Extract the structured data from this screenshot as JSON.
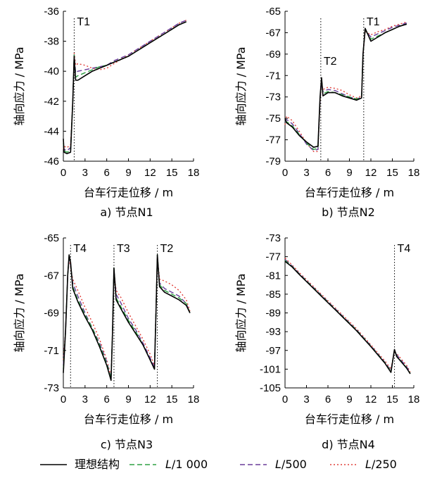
{
  "legend": [
    {
      "name": "理想结构",
      "style": "solid",
      "color": "#000000"
    },
    {
      "name": "L/1 000",
      "style": "dash",
      "color": "#2ea043"
    },
    {
      "name": "L/500",
      "style": "dash",
      "color": "#6a3d9a"
    },
    {
      "name": "L/250",
      "style": "dot",
      "color": "#e0403a"
    }
  ],
  "legend_text": {
    "ideal": "理想结构",
    "l1000_prefix": "L",
    "l1000_suffix": "/1 000",
    "l500_prefix": "L",
    "l500_suffix": "/500",
    "l250_prefix": "L",
    "l250_suffix": "/250"
  },
  "chart_data": [
    {
      "type": "line",
      "caption": "a)  节点N1",
      "xlabel": "台车行走位移 / m",
      "ylabel": "轴向应力 / MPa",
      "xlim": [
        0,
        18
      ],
      "ylim": [
        -46,
        -36
      ],
      "xticks": [
        0,
        3,
        6,
        9,
        12,
        15,
        18
      ],
      "yticks": [
        -46,
        -44,
        -42,
        -40,
        -38,
        -36
      ],
      "annotations": [
        {
          "text": "T1",
          "x": 1.5
        }
      ],
      "series": [
        {
          "x": [
            0,
            0.1,
            0.5,
            1.0,
            1.3,
            1.5,
            1.7,
            2.0,
            3.0,
            4.0,
            5.0,
            6.0,
            7.0,
            8.0,
            9.0,
            10.0,
            11.0,
            12.0,
            13.0,
            14.0,
            15.0,
            16.0,
            17.0
          ],
          "y": [
            -44.5,
            -45.4,
            -45.5,
            -45.4,
            -42.0,
            -39.0,
            -40.6,
            -40.6,
            -40.3,
            -40.0,
            -39.8,
            -39.6,
            -39.4,
            -39.2,
            -39.0,
            -38.7,
            -38.4,
            -38.1,
            -37.8,
            -37.5,
            -37.2,
            -36.9,
            -36.7
          ]
        },
        {
          "x": [
            0,
            0.1,
            0.5,
            1.0,
            1.3,
            1.5,
            1.7,
            2.0,
            3.0,
            4.0,
            5.0,
            6.0,
            7.0,
            8.0,
            9.0,
            10.0,
            11.0,
            12.0,
            13.0,
            14.0,
            15.0,
            16.0,
            17.0
          ],
          "y": [
            -44.8,
            -45.3,
            -45.4,
            -45.3,
            -42.0,
            -38.9,
            -40.4,
            -40.3,
            -40.1,
            -39.9,
            -39.7,
            -39.6,
            -39.4,
            -39.2,
            -39.0,
            -38.7,
            -38.4,
            -38.1,
            -37.8,
            -37.5,
            -37.2,
            -36.9,
            -36.7
          ]
        },
        {
          "x": [
            0,
            0.1,
            0.5,
            1.0,
            1.3,
            1.5,
            1.7,
            2.0,
            3.0,
            4.0,
            5.0,
            6.0,
            7.0,
            8.0,
            9.0,
            10.0,
            11.0,
            12.0,
            13.0,
            14.0,
            15.0,
            16.0,
            17.0
          ],
          "y": [
            -45.0,
            -45.2,
            -45.3,
            -45.1,
            -42.0,
            -38.9,
            -40.1,
            -40.0,
            -39.9,
            -39.8,
            -39.7,
            -39.6,
            -39.3,
            -39.1,
            -38.9,
            -38.6,
            -38.3,
            -38.0,
            -37.7,
            -37.4,
            -37.1,
            -36.8,
            -36.6
          ]
        },
        {
          "x": [
            0,
            0.1,
            0.5,
            1.0,
            1.3,
            1.5,
            1.7,
            2.0,
            3.0,
            4.0,
            5.0,
            6.0,
            7.0,
            8.0,
            9.0,
            10.0,
            11.0,
            12.0,
            13.0,
            14.0,
            15.0,
            16.0,
            17.0
          ],
          "y": [
            -45.2,
            -45.0,
            -45.1,
            -44.9,
            -42.0,
            -38.8,
            -39.6,
            -39.5,
            -39.6,
            -39.8,
            -39.9,
            -39.8,
            -39.5,
            -39.2,
            -38.9,
            -38.6,
            -38.3,
            -38.0,
            -37.7,
            -37.4,
            -37.1,
            -36.8,
            -36.6
          ]
        }
      ]
    },
    {
      "type": "line",
      "caption": "b)  节点N2",
      "xlabel": "台车行走位移 / m",
      "ylabel": "轴向应力 / MPa",
      "xlim": [
        0,
        18
      ],
      "ylim": [
        -79,
        -65
      ],
      "xticks": [
        0,
        3,
        6,
        9,
        12,
        15,
        18
      ],
      "yticks": [
        -79,
        -77,
        -75,
        -73,
        -71,
        -69,
        -67,
        -65
      ],
      "annotations": [
        {
          "text": "T2",
          "x": 5
        },
        {
          "text": "T1",
          "x": 11
        }
      ],
      "series": [
        {
          "x": [
            0,
            0.2,
            1,
            2,
            3,
            4,
            4.6,
            4.9,
            5.1,
            5.3,
            6,
            7,
            8,
            9,
            10,
            10.7,
            10.9,
            11.2,
            12,
            13,
            14,
            15,
            16,
            17
          ],
          "y": [
            -75.0,
            -75.4,
            -75.8,
            -76.6,
            -77.2,
            -77.7,
            -77.6,
            -73.0,
            -71.2,
            -72.9,
            -72.6,
            -72.6,
            -72.9,
            -73.1,
            -73.3,
            -73.1,
            -69.0,
            -66.6,
            -67.8,
            -67.4,
            -67.0,
            -66.7,
            -66.4,
            -66.2
          ]
        },
        {
          "x": [
            0,
            0.2,
            1,
            2,
            3,
            4,
            4.6,
            4.9,
            5.1,
            5.3,
            6,
            7,
            8,
            9,
            10,
            10.7,
            10.9,
            11.2,
            12,
            13,
            14,
            15,
            16,
            17
          ],
          "y": [
            -75.2,
            -75.3,
            -75.7,
            -76.5,
            -77.3,
            -77.9,
            -77.8,
            -73.2,
            -71.3,
            -72.7,
            -72.5,
            -72.6,
            -72.8,
            -73.0,
            -73.2,
            -73.0,
            -69.0,
            -66.7,
            -67.6,
            -67.3,
            -67.0,
            -66.7,
            -66.4,
            -66.2
          ]
        },
        {
          "x": [
            0,
            0.2,
            1,
            2,
            3,
            4,
            4.6,
            4.9,
            5.1,
            5.3,
            6,
            7,
            8,
            9,
            10,
            10.7,
            10.9,
            11.2,
            12,
            13,
            14,
            15,
            16,
            17
          ],
          "y": [
            -75.3,
            -75.1,
            -75.5,
            -76.4,
            -77.4,
            -78.0,
            -77.9,
            -73.3,
            -71.5,
            -72.5,
            -72.3,
            -72.4,
            -72.7,
            -73.0,
            -73.2,
            -73.0,
            -69.0,
            -66.8,
            -67.4,
            -67.1,
            -66.8,
            -66.5,
            -66.3,
            -66.1
          ]
        },
        {
          "x": [
            0,
            0.2,
            1,
            2,
            3,
            4,
            4.6,
            4.9,
            5.1,
            5.3,
            6,
            7,
            8,
            9,
            10,
            10.7,
            10.9,
            11.2,
            12,
            13,
            14,
            15,
            16,
            17
          ],
          "y": [
            -75.6,
            -74.8,
            -75.2,
            -76.2,
            -77.3,
            -78.1,
            -78.1,
            -73.5,
            -71.7,
            -72.3,
            -72.1,
            -72.2,
            -72.4,
            -72.8,
            -73.1,
            -72.9,
            -69.0,
            -66.9,
            -67.2,
            -66.9,
            -66.7,
            -66.4,
            -66.2,
            -66.0
          ]
        }
      ]
    },
    {
      "type": "line",
      "caption": "c)  节点N3",
      "xlabel": "台车行走位移 / m",
      "ylabel": "轴向应力 / MPa",
      "xlim": [
        0,
        18
      ],
      "ylim": [
        -73,
        -65
      ],
      "xticks": [
        0,
        3,
        6,
        9,
        12,
        15,
        18
      ],
      "yticks": [
        -73,
        -71,
        -69,
        -67,
        -65
      ],
      "annotations": [
        {
          "text": "T4",
          "x": 1
        },
        {
          "text": "T3",
          "x": 7
        },
        {
          "text": "T2",
          "x": 13
        }
      ],
      "series": [
        {
          "x": [
            0,
            0.3,
            0.6,
            0.8,
            1.0,
            1.3,
            2,
            3,
            4,
            5,
            6,
            6.6,
            6.8,
            7.0,
            7.3,
            8,
            9,
            10,
            11,
            12,
            12.6,
            12.8,
            13.0,
            13.3,
            14,
            15,
            16,
            17,
            17.5
          ],
          "y": [
            -72.2,
            -70.0,
            -67.0,
            -65.9,
            -66.3,
            -67.7,
            -68.4,
            -69.2,
            -69.9,
            -70.8,
            -71.8,
            -72.6,
            -70.0,
            -66.6,
            -68.3,
            -68.8,
            -69.5,
            -70.1,
            -70.7,
            -71.5,
            -72.0,
            -69.0,
            -65.9,
            -67.6,
            -67.9,
            -68.1,
            -68.3,
            -68.6,
            -69.0
          ]
        },
        {
          "x": [
            0,
            0.3,
            0.6,
            0.8,
            1.0,
            1.3,
            2,
            3,
            4,
            5,
            6,
            6.6,
            6.8,
            7.0,
            7.3,
            8,
            9,
            10,
            11,
            12,
            12.6,
            12.8,
            13.0,
            13.3,
            14,
            15,
            16,
            17,
            17.5
          ],
          "y": [
            -72.0,
            -70.0,
            -67.0,
            -65.9,
            -66.4,
            -67.6,
            -68.3,
            -69.1,
            -69.8,
            -70.7,
            -71.7,
            -72.5,
            -70.0,
            -66.6,
            -68.2,
            -68.7,
            -69.4,
            -70.0,
            -70.7,
            -71.5,
            -72.0,
            -69.0,
            -65.9,
            -67.5,
            -67.8,
            -68.0,
            -68.2,
            -68.5,
            -69.0
          ]
        },
        {
          "x": [
            0,
            0.3,
            0.6,
            0.8,
            1.0,
            1.3,
            2,
            3,
            4,
            5,
            6,
            6.6,
            6.8,
            7.0,
            7.3,
            8,
            9,
            10,
            11,
            12,
            12.6,
            12.8,
            13.0,
            13.3,
            14,
            15,
            16,
            17,
            17.5
          ],
          "y": [
            -71.8,
            -70.0,
            -67.0,
            -66.0,
            -66.5,
            -67.4,
            -68.1,
            -69.0,
            -69.8,
            -70.6,
            -71.6,
            -72.5,
            -70.0,
            -66.7,
            -68.0,
            -68.5,
            -69.3,
            -69.9,
            -70.6,
            -71.4,
            -71.9,
            -69.0,
            -66.0,
            -67.4,
            -67.7,
            -67.9,
            -68.1,
            -68.5,
            -69.0
          ]
        },
        {
          "x": [
            0,
            0.3,
            0.6,
            0.8,
            1.0,
            1.3,
            2,
            3,
            4,
            5,
            6,
            6.6,
            6.8,
            7.0,
            7.3,
            8,
            9,
            10,
            11,
            12,
            12.6,
            12.8,
            13.0,
            13.3,
            14,
            15,
            16,
            17,
            17.5
          ],
          "y": [
            -71.5,
            -70.0,
            -67.0,
            -66.0,
            -66.6,
            -67.2,
            -67.8,
            -68.7,
            -69.5,
            -70.4,
            -71.5,
            -72.4,
            -70.0,
            -66.8,
            -67.8,
            -68.2,
            -69.0,
            -69.7,
            -70.4,
            -71.2,
            -71.8,
            -69.0,
            -66.0,
            -67.2,
            -67.3,
            -67.5,
            -67.8,
            -68.3,
            -68.9
          ]
        }
      ]
    },
    {
      "type": "line",
      "caption": "d)  节点N4",
      "xlabel": "台车行走位移 / m",
      "ylabel": "轴向应力 / MPa",
      "xlim": [
        0,
        18
      ],
      "ylim": [
        -105,
        -73
      ],
      "xticks": [
        0,
        3,
        6,
        9,
        12,
        15,
        18
      ],
      "yticks": [
        -105,
        -101,
        -97,
        -93,
        -89,
        -85,
        -81,
        -77,
        -73
      ],
      "annotations": [
        {
          "text": "T4",
          "x": 15.3
        }
      ],
      "series": [
        {
          "x": [
            0,
            1,
            2,
            3,
            4,
            5,
            6,
            7,
            8,
            9,
            10,
            11,
            12,
            13,
            14,
            14.8,
            15.3,
            15.6,
            16,
            17,
            17.5
          ],
          "y": [
            -78.0,
            -79.2,
            -80.8,
            -82.3,
            -83.8,
            -85.3,
            -86.8,
            -88.3,
            -89.8,
            -91.3,
            -92.8,
            -94.5,
            -96.2,
            -98.0,
            -99.8,
            -101.7,
            -96.8,
            -98.3,
            -99.0,
            -100.8,
            -102.0
          ]
        },
        {
          "x": [
            0,
            1,
            2,
            3,
            4,
            5,
            6,
            7,
            8,
            9,
            10,
            11,
            12,
            13,
            14,
            14.8,
            15.3,
            15.6,
            16,
            17,
            17.5
          ],
          "y": [
            -77.8,
            -79.1,
            -80.7,
            -82.2,
            -83.7,
            -85.2,
            -86.7,
            -88.2,
            -89.7,
            -91.2,
            -92.7,
            -94.4,
            -96.1,
            -97.9,
            -99.7,
            -101.5,
            -96.9,
            -98.1,
            -98.9,
            -100.7,
            -101.9
          ]
        },
        {
          "x": [
            0,
            1,
            2,
            3,
            4,
            5,
            6,
            7,
            8,
            9,
            10,
            11,
            12,
            13,
            14,
            14.8,
            15.3,
            15.6,
            16,
            17,
            17.5
          ],
          "y": [
            -77.6,
            -79.0,
            -80.6,
            -82.1,
            -83.6,
            -85.1,
            -86.6,
            -88.1,
            -89.6,
            -91.1,
            -92.6,
            -94.3,
            -96.0,
            -97.8,
            -99.6,
            -101.3,
            -97.0,
            -97.9,
            -98.7,
            -100.5,
            -101.8
          ]
        },
        {
          "x": [
            0,
            1,
            2,
            3,
            4,
            5,
            6,
            7,
            8,
            9,
            10,
            11,
            12,
            13,
            14,
            14.8,
            15.3,
            15.6,
            16,
            17,
            17.5
          ],
          "y": [
            -77.3,
            -78.8,
            -80.4,
            -81.9,
            -83.4,
            -84.9,
            -86.4,
            -87.9,
            -89.4,
            -90.9,
            -92.4,
            -94.1,
            -95.8,
            -97.6,
            -99.3,
            -101.0,
            -97.2,
            -97.7,
            -98.4,
            -100.2,
            -101.6
          ]
        }
      ]
    }
  ]
}
